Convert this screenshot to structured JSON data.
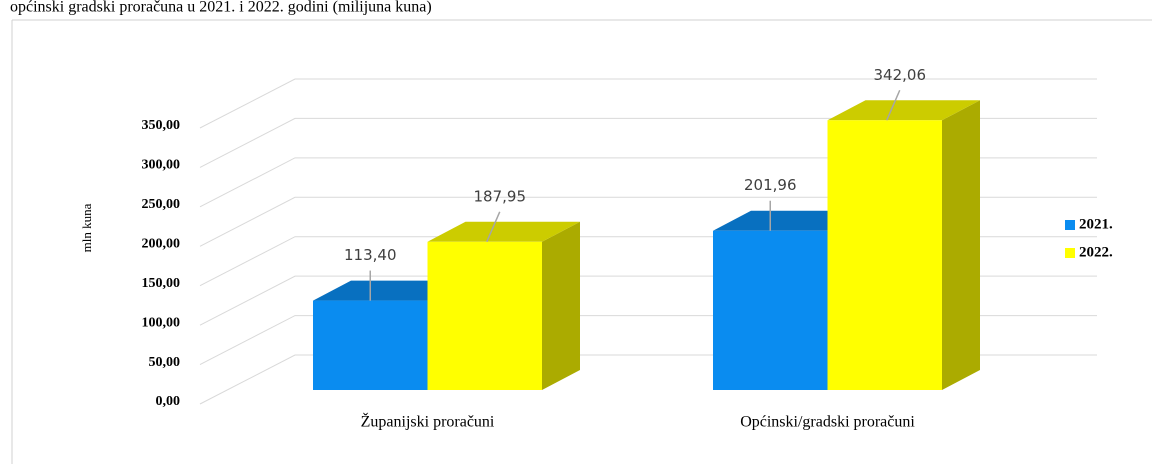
{
  "chart_data": {
    "type": "bar3d",
    "title": "općinski gradski proračuna u 2021. i 2022. godini (milijuna kuna)",
    "y_label": "mln kuna",
    "categories": [
      "Županijski proračuni",
      "Općinski/gradski proračuni"
    ],
    "series": [
      {
        "name": "2021.",
        "color": "#0a8cf0",
        "values": [
          113.4,
          201.96
        ],
        "value_labels": [
          "113,40",
          "201,96"
        ]
      },
      {
        "name": "2022.",
        "color": "#ffff00",
        "values": [
          187.95,
          342.06
        ],
        "value_labels": [
          "187,95",
          "342,06"
        ]
      }
    ],
    "ylim": [
      0,
      350
    ],
    "yticks": [
      {
        "value": 0,
        "label": "0,00"
      },
      {
        "value": 50,
        "label": "50,00"
      },
      {
        "value": 100,
        "label": "100,00"
      },
      {
        "value": 150,
        "label": "150,00"
      },
      {
        "value": 200,
        "label": "200,00"
      },
      {
        "value": 250,
        "label": "250,00"
      },
      {
        "value": 300,
        "label": "300,00"
      },
      {
        "value": 350,
        "label": "350,00"
      }
    ],
    "grid": true,
    "legend": "right"
  }
}
